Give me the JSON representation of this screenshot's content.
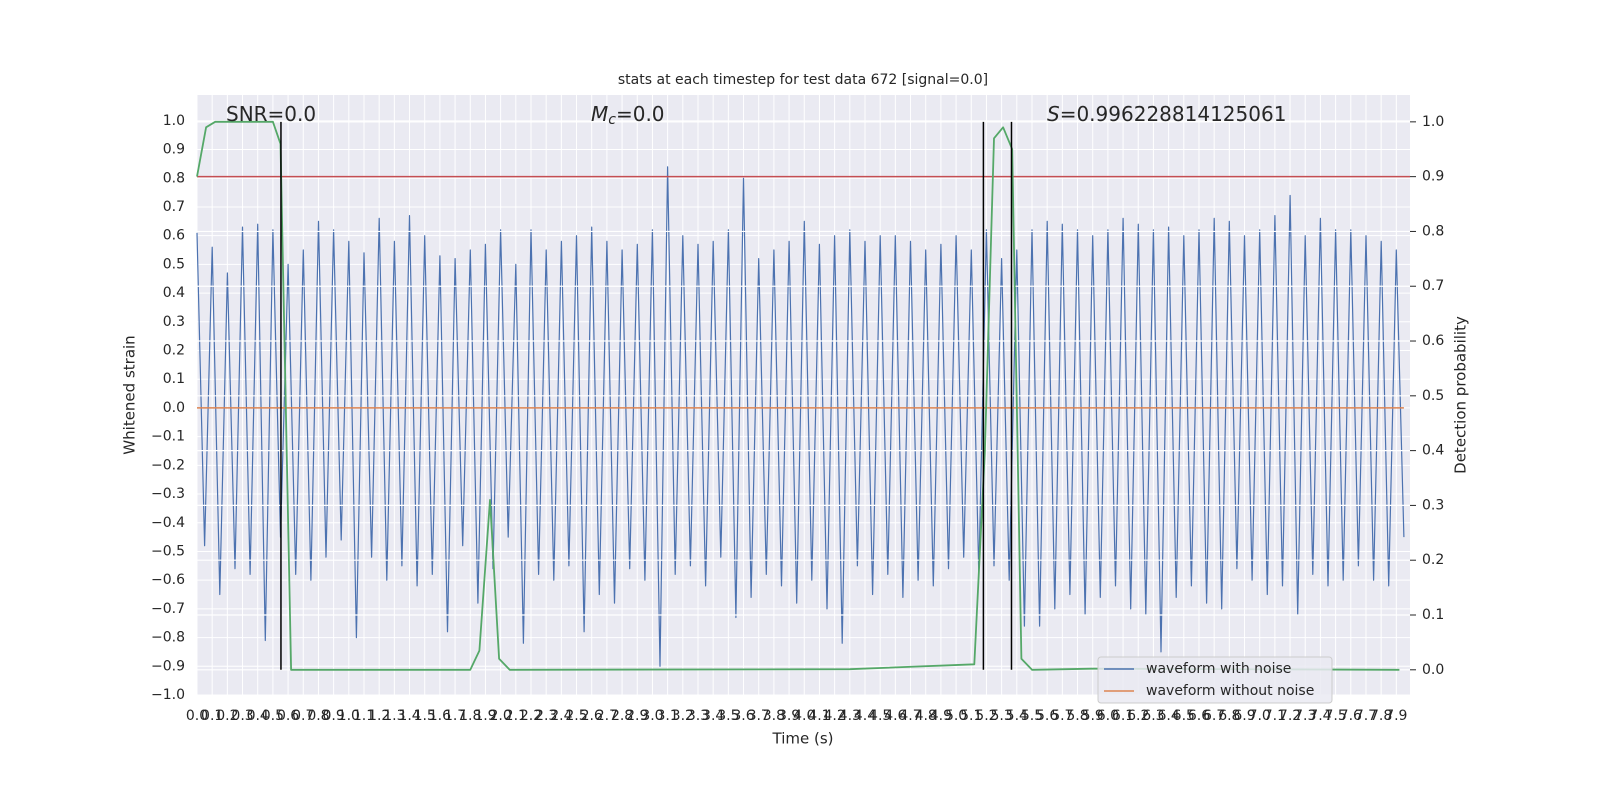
{
  "chart_data": {
    "type": "line",
    "title": "stats at each timestep for test data 672 [signal=0.0]",
    "xlabel": "Time (s)",
    "ylabel": "Whitened strain",
    "y2label": "Detection probability",
    "annotations": [
      {
        "text": "SNR=0.0"
      },
      {
        "italic": "M",
        "sub": "c",
        "text": "=0.0"
      },
      {
        "italic": "S",
        "text": "=0.996228814125061"
      }
    ],
    "xlim": [
      0,
      7.99
    ],
    "ylim": [
      -1.0,
      1.09
    ],
    "y2lim": [
      -0.046,
      1.049
    ],
    "grid": true,
    "legend": "lower right",
    "xticks": [
      {
        "value": 0,
        "label": "0.0"
      },
      0.1,
      0.2,
      0.3,
      0.4,
      0.5,
      0.6,
      0.7,
      0.8,
      0.9,
      {
        "value": 1,
        "label": "1.0"
      },
      1.1,
      1.2,
      1.3,
      1.4,
      1.5,
      1.6,
      1.7,
      1.8,
      1.9,
      {
        "value": 2,
        "label": "2.0"
      },
      2.1,
      2.2,
      2.3,
      2.4,
      2.5,
      2.6,
      2.7,
      2.8,
      2.9,
      {
        "value": 3,
        "label": "3.0"
      },
      3.1,
      3.2,
      3.3,
      3.4,
      3.5,
      3.6,
      3.7,
      3.8,
      3.9,
      {
        "value": 4,
        "label": "4.0"
      },
      4.1,
      4.2,
      4.3,
      4.4,
      4.5,
      4.6,
      4.7,
      4.8,
      4.9,
      {
        "value": 5,
        "label": "5.0"
      },
      5.1,
      5.2,
      5.3,
      5.4,
      5.5,
      5.6,
      5.7,
      5.8,
      5.9,
      {
        "value": 6,
        "label": "6.0"
      },
      6.1,
      6.2,
      6.3,
      6.4,
      6.5,
      6.6,
      6.7,
      6.8,
      6.9,
      {
        "value": 7,
        "label": "7.0"
      },
      7.1,
      7.2,
      7.3,
      7.4,
      7.5,
      7.6,
      7.7,
      7.8,
      7.9
    ],
    "yticks": [
      {
        "value": -1.0,
        "label": "−1.0"
      },
      {
        "value": -0.9,
        "label": "−0.9"
      },
      {
        "value": -0.8,
        "label": "−0.8"
      },
      {
        "value": -0.7,
        "label": "−0.7"
      },
      {
        "value": -0.6,
        "label": "−0.6"
      },
      {
        "value": -0.5,
        "label": "−0.5"
      },
      {
        "value": -0.4,
        "label": "−0.4"
      },
      {
        "value": -0.3,
        "label": "−0.3"
      },
      {
        "value": -0.2,
        "label": "−0.2"
      },
      {
        "value": -0.1,
        "label": "−0.1"
      },
      {
        "value": 0,
        "label": "0.0"
      },
      0.1,
      0.2,
      0.3,
      0.4,
      0.5,
      0.6,
      0.7,
      0.8,
      0.9,
      {
        "value": 1,
        "label": "1.0"
      }
    ],
    "y2ticks": [
      {
        "value": 0,
        "label": "0.0"
      },
      0.1,
      0.2,
      0.3,
      0.4,
      0.5,
      0.6,
      0.7,
      0.8,
      0.9,
      {
        "value": 1,
        "label": "1.0"
      }
    ],
    "series": [
      {
        "name": "waveform with noise",
        "color": "#4c72b0",
        "x": [
          0,
          0.05,
          0.1,
          0.15,
          0.2,
          0.25,
          0.3,
          0.35,
          0.4,
          0.45,
          0.5,
          0.55,
          0.6,
          0.65,
          0.7,
          0.75,
          0.8,
          0.85,
          0.9,
          0.95,
          1.0,
          1.05,
          1.1,
          1.15,
          1.2,
          1.25,
          1.3,
          1.35,
          1.4,
          1.45,
          1.5,
          1.55,
          1.6,
          1.65,
          1.7,
          1.75,
          1.8,
          1.85,
          1.9,
          1.95,
          2.0,
          2.05,
          2.1,
          2.15,
          2.2,
          2.25,
          2.3,
          2.35,
          2.4,
          2.45,
          2.5,
          2.55,
          2.6,
          2.65,
          2.7,
          2.75,
          2.8,
          2.85,
          2.9,
          2.95,
          3.0,
          3.05,
          3.1,
          3.15,
          3.2,
          3.25,
          3.3,
          3.35,
          3.4,
          3.45,
          3.5,
          3.55,
          3.6,
          3.65,
          3.7,
          3.75,
          3.8,
          3.85,
          3.9,
          3.95,
          4.0,
          4.05,
          4.1,
          4.15,
          4.2,
          4.25,
          4.3,
          4.35,
          4.4,
          4.45,
          4.5,
          4.55,
          4.6,
          4.65,
          4.7,
          4.75,
          4.8,
          4.85,
          4.9,
          4.95,
          5.0,
          5.05,
          5.1,
          5.15,
          5.2,
          5.25,
          5.3,
          5.35,
          5.4,
          5.45,
          5.5,
          5.55,
          5.6,
          5.65,
          5.7,
          5.75,
          5.8,
          5.85,
          5.9,
          5.95,
          6.0,
          6.05,
          6.1,
          6.15,
          6.2,
          6.25,
          6.3,
          6.35,
          6.4,
          6.45,
          6.5,
          6.55,
          6.6,
          6.65,
          6.7,
          6.75,
          6.8,
          6.85,
          6.9,
          6.95,
          7.0,
          7.05,
          7.1,
          7.15,
          7.2,
          7.25,
          7.3,
          7.35,
          7.4,
          7.45,
          7.5,
          7.55,
          7.6,
          7.65,
          7.7,
          7.75,
          7.8,
          7.85,
          7.9,
          7.95
        ],
        "values": [
          0.61,
          -0.48,
          0.56,
          -0.65,
          0.47,
          -0.56,
          0.63,
          -0.58,
          0.64,
          -0.81,
          0.62,
          -0.45,
          0.5,
          -0.58,
          0.55,
          -0.6,
          0.65,
          -0.52,
          0.62,
          -0.46,
          0.58,
          -0.8,
          0.54,
          -0.52,
          0.66,
          -0.6,
          0.58,
          -0.55,
          0.67,
          -0.62,
          0.6,
          -0.58,
          0.53,
          -0.78,
          0.52,
          -0.48,
          0.55,
          -0.68,
          0.57,
          -0.56,
          0.62,
          -0.45,
          0.5,
          -0.82,
          0.62,
          -0.58,
          0.55,
          -0.6,
          0.58,
          -0.55,
          0.6,
          -0.78,
          0.63,
          -0.65,
          0.58,
          -0.68,
          0.55,
          -0.56,
          0.57,
          -0.6,
          0.62,
          -0.9,
          0.84,
          -0.58,
          0.6,
          -0.55,
          0.57,
          -0.62,
          0.58,
          -0.52,
          0.62,
          -0.73,
          0.8,
          -0.66,
          0.52,
          -0.58,
          0.55,
          -0.62,
          0.58,
          -0.68,
          0.65,
          -0.6,
          0.57,
          -0.7,
          0.6,
          -0.82,
          0.62,
          -0.55,
          0.58,
          -0.65,
          0.6,
          -0.58,
          0.6,
          -0.66,
          0.58,
          -0.6,
          0.55,
          -0.62,
          0.57,
          -0.56,
          0.6,
          -0.52,
          0.55,
          -0.58,
          0.62,
          -0.55,
          0.52,
          -0.6,
          0.55,
          -0.76,
          0.62,
          -0.76,
          0.65,
          -0.7,
          0.64,
          -0.65,
          0.62,
          -0.72,
          0.6,
          -0.66,
          0.62,
          -0.62,
          0.66,
          -0.7,
          0.64,
          -0.72,
          0.62,
          -0.85,
          0.63,
          -0.66,
          0.6,
          -0.62,
          0.62,
          -0.68,
          0.66,
          -0.7,
          0.65,
          -0.56,
          0.6,
          -0.6,
          0.62,
          -0.65,
          0.67,
          -0.62,
          0.74,
          -0.72,
          0.6,
          -0.58,
          0.66,
          -0.62,
          0.62,
          -0.6,
          0.62,
          -0.55,
          0.6,
          -0.6,
          0.58,
          -0.62,
          0.55,
          -0.45
        ]
      },
      {
        "name": "waveform without noise",
        "color": "#dd8452",
        "x": [
          0,
          7.95
        ],
        "values": [
          0,
          0
        ]
      }
    ],
    "probability": {
      "color": "#55a868",
      "axis": "y2",
      "x": [
        0,
        0.06,
        0.12,
        0.2,
        0.3,
        0.4,
        0.5,
        0.55,
        0.62,
        0.7,
        1.8,
        1.86,
        1.93,
        1.99,
        2.06,
        4.3,
        5.12,
        5.19,
        5.25,
        5.31,
        5.37,
        5.43,
        5.5,
        5.9,
        7.92
      ],
      "values": [
        0.9,
        0.99,
        1.0,
        1.0,
        1.0,
        1.0,
        1.0,
        0.96,
        0.0,
        0.0,
        0.0,
        0.035,
        0.31,
        0.02,
        0.0,
        0.001,
        0.01,
        0.4,
        0.97,
        0.99,
        0.95,
        0.02,
        0.0,
        0.002,
        0.0
      ]
    },
    "threshold": {
      "value": 0.9,
      "axis": "y2",
      "color": "#c44e52"
    },
    "vlines": {
      "x": [
        0.553,
        5.18,
        5.365
      ],
      "ymin": 0,
      "ymax": 1,
      "axis": "y2",
      "color": "#000000"
    }
  }
}
